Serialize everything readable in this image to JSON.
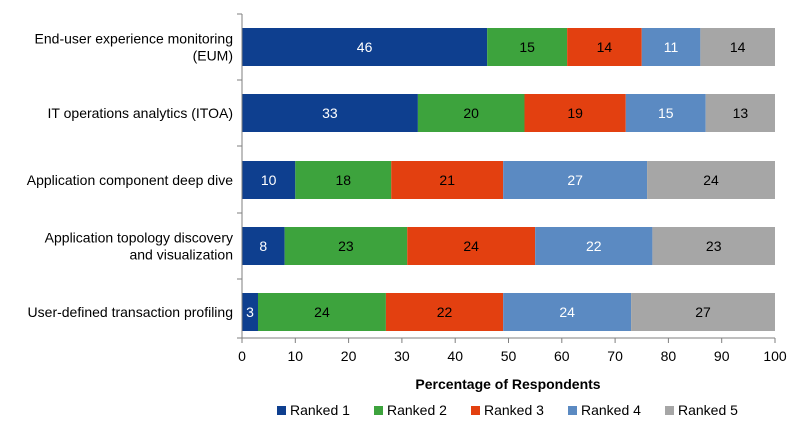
{
  "chart_data": {
    "type": "bar",
    "orientation": "horizontal",
    "stacked": true,
    "categories": [
      [
        "End-user experience monitoring",
        "(EUM)"
      ],
      [
        "IT operations analytics (ITOA)"
      ],
      [
        "Application component deep dive"
      ],
      [
        "Application topology discovery",
        "and visualization"
      ],
      [
        "User-defined transaction profiling"
      ]
    ],
    "series": [
      {
        "name": "Ranked 1",
        "color": "#0E3F8F",
        "label_color": "#ffffff",
        "values": [
          46,
          33,
          10,
          8,
          3
        ]
      },
      {
        "name": "Ranked 2",
        "color": "#3DA33D",
        "label_color": "#000000",
        "values": [
          15,
          20,
          18,
          23,
          24
        ]
      },
      {
        "name": "Ranked 3",
        "color": "#E34010",
        "label_color": "#000000",
        "values": [
          14,
          19,
          21,
          24,
          22
        ]
      },
      {
        "name": "Ranked 4",
        "color": "#5B8AC2",
        "label_color": "#ffffff",
        "values": [
          11,
          15,
          27,
          22,
          24
        ]
      },
      {
        "name": "Ranked 5",
        "color": "#A6A6A6",
        "label_color": "#000000",
        "values": [
          14,
          13,
          24,
          23,
          27
        ]
      }
    ],
    "xlabel": "Percentage of Respondents",
    "xlim": [
      0,
      100
    ],
    "xticks": [
      0,
      10,
      20,
      30,
      40,
      50,
      60,
      70,
      80,
      90,
      100
    ],
    "grid": false,
    "legend_position": "bottom"
  }
}
